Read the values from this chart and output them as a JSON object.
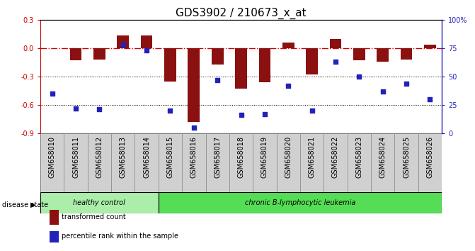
{
  "title": "GDS3902 / 210673_x_at",
  "samples": [
    "GSM658010",
    "GSM658011",
    "GSM658012",
    "GSM658013",
    "GSM658014",
    "GSM658015",
    "GSM658016",
    "GSM658017",
    "GSM658018",
    "GSM658019",
    "GSM658020",
    "GSM658021",
    "GSM658022",
    "GSM658023",
    "GSM658024",
    "GSM658025",
    "GSM658026"
  ],
  "bar_values": [
    0.0,
    -0.13,
    -0.12,
    0.14,
    0.14,
    -0.35,
    -0.78,
    -0.17,
    -0.43,
    -0.36,
    0.06,
    -0.28,
    0.1,
    -0.13,
    -0.14,
    -0.12,
    0.04
  ],
  "dot_values": [
    35,
    22,
    21,
    78,
    73,
    20,
    5,
    47,
    16,
    17,
    42,
    20,
    63,
    50,
    37,
    44,
    30
  ],
  "groups": [
    {
      "label": "healthy control",
      "start": 0,
      "end": 4,
      "color": "#aaeeaa"
    },
    {
      "label": "chronic B-lymphocytic leukemia",
      "start": 5,
      "end": 16,
      "color": "#55dd55"
    }
  ],
  "ylim_left": [
    -0.9,
    0.3
  ],
  "ylim_right": [
    0,
    100
  ],
  "yticks_left": [
    -0.9,
    -0.6,
    -0.3,
    0.0,
    0.3
  ],
  "yticks_right": [
    0,
    25,
    50,
    75,
    100
  ],
  "ytick_labels_right": [
    "0",
    "25",
    "50",
    "75",
    "100%"
  ],
  "bar_color": "#8b1010",
  "dot_color": "#2222bb",
  "hline_color": "#cc0000",
  "dotted_lines": [
    -0.3,
    -0.6
  ],
  "disease_state_label": "disease state",
  "legend_bar_label": "transformed count",
  "legend_dot_label": "percentile rank within the sample",
  "background_color": "#ffffff",
  "tick_box_color": "#d0d0d0",
  "tick_box_edge": "#888888",
  "title_fontsize": 11,
  "tick_fontsize": 7,
  "label_fontsize": 8
}
